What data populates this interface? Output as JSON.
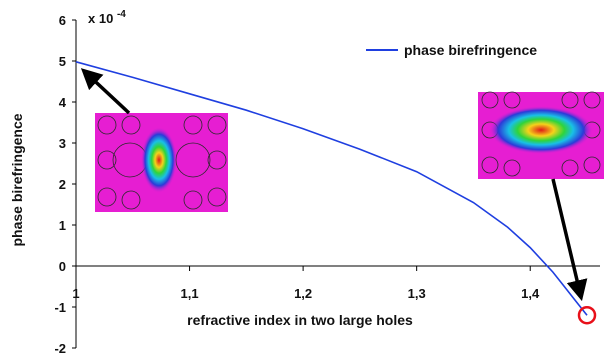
{
  "chart_data": {
    "type": "line",
    "xlabel": "refractive index in two large holes",
    "ylabel": "phase birefringence",
    "y_multiplier": "x 10",
    "y_exponent": "-4",
    "xlim": [
      1.0,
      1.45
    ],
    "ylim": [
      -2,
      6
    ],
    "x_ticks": [
      "1",
      "1,1",
      "1,2",
      "1,3",
      "1,4"
    ],
    "x_tick_values": [
      1.0,
      1.1,
      1.2,
      1.3,
      1.4
    ],
    "y_ticks": [
      "-2",
      "-1",
      "0",
      "1",
      "2",
      "3",
      "4",
      "5",
      "6"
    ],
    "y_tick_values": [
      -2,
      -1,
      0,
      1,
      2,
      3,
      4,
      5,
      6
    ],
    "grid": false,
    "legend_position": "top-right",
    "series": [
      {
        "name": "phase birefringence",
        "color": "#1f3fe0",
        "x": [
          1.0,
          1.05,
          1.1,
          1.15,
          1.2,
          1.25,
          1.3,
          1.35,
          1.38,
          1.4,
          1.42,
          1.43,
          1.44,
          1.45
        ],
        "y": [
          4.98,
          4.6,
          4.2,
          3.8,
          3.35,
          2.85,
          2.3,
          1.55,
          0.95,
          0.45,
          -0.15,
          -0.5,
          -0.85,
          -1.2
        ]
      }
    ],
    "annotations": [
      {
        "type": "arrow",
        "from": "left-inset",
        "to_point": [
          1.0,
          4.98
        ]
      },
      {
        "type": "arrow",
        "from": "right-inset",
        "to_point": [
          1.45,
          -1.2
        ]
      },
      {
        "type": "circle-marker",
        "point": [
          1.45,
          -1.2
        ],
        "color": "#e8101a"
      }
    ]
  },
  "insets": [
    {
      "name": "left-mode-profile",
      "background": "#e61ed2",
      "core": "#e01818",
      "mode": "x-polarized, narrow vertical"
    },
    {
      "name": "right-mode-profile",
      "background": "#e61ed2",
      "core": "#e01818",
      "mode": "y-polarized, wide horizontal"
    }
  ]
}
